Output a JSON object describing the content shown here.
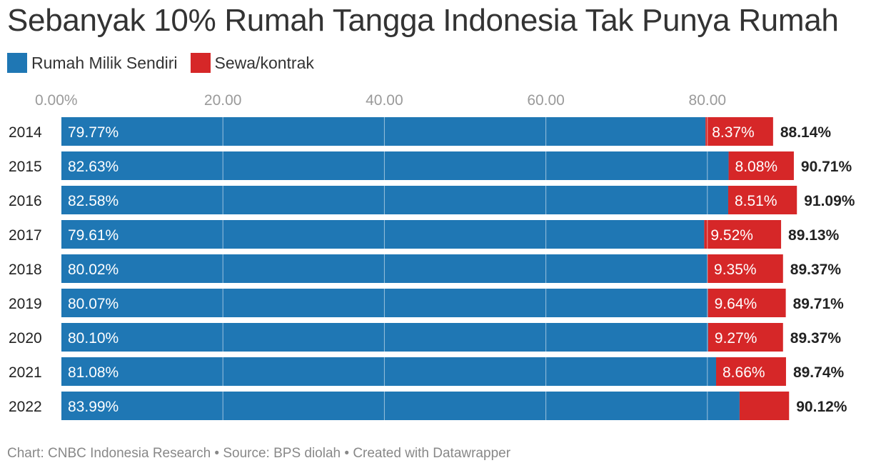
{
  "title": "Sebanyak 10% Rumah Tangga Indonesia Tak Punya Rumah",
  "footer": "Chart: CNBC Indonesia Research • Source: BPS diolah • Created with Datawrapper",
  "colors": {
    "owned": "#1f77b4",
    "rent": "#d62728",
    "grid": "#ffffff"
  },
  "chart_data": {
    "type": "bar",
    "orientation": "horizontal",
    "stacked": true,
    "categories": [
      "2014",
      "2015",
      "2016",
      "2017",
      "2018",
      "2019",
      "2020",
      "2021",
      "2022"
    ],
    "series": [
      {
        "name": "Rumah Milik Sendiri",
        "values": [
          79.77,
          82.63,
          82.58,
          79.61,
          80.02,
          80.07,
          80.1,
          81.08,
          83.99
        ],
        "labels": [
          "79.77%",
          "82.63%",
          "82.58%",
          "79.61%",
          "80.02%",
          "80.07%",
          "80.10%",
          "81.08%",
          "83.99%"
        ]
      },
      {
        "name": "Sewa/kontrak",
        "values": [
          8.37,
          8.08,
          8.51,
          9.52,
          9.35,
          9.64,
          9.27,
          8.66,
          6.13
        ],
        "labels": [
          "8.37%",
          "8.08%",
          "8.51%",
          "9.52%",
          "9.35%",
          "9.64%",
          "9.27%",
          "8.66%",
          ""
        ]
      }
    ],
    "totals": [
      "88.14%",
      "90.71%",
      "91.09%",
      "89.13%",
      "89.37%",
      "89.71%",
      "89.37%",
      "89.74%",
      "90.12%"
    ],
    "xticks": [
      0,
      20,
      40,
      60,
      80
    ],
    "xtick_labels": [
      "0.00%",
      "20.00",
      "40.00",
      "60.00",
      "80.00"
    ],
    "xlim": [
      0,
      100
    ],
    "grid": true,
    "legend": "top-left"
  }
}
